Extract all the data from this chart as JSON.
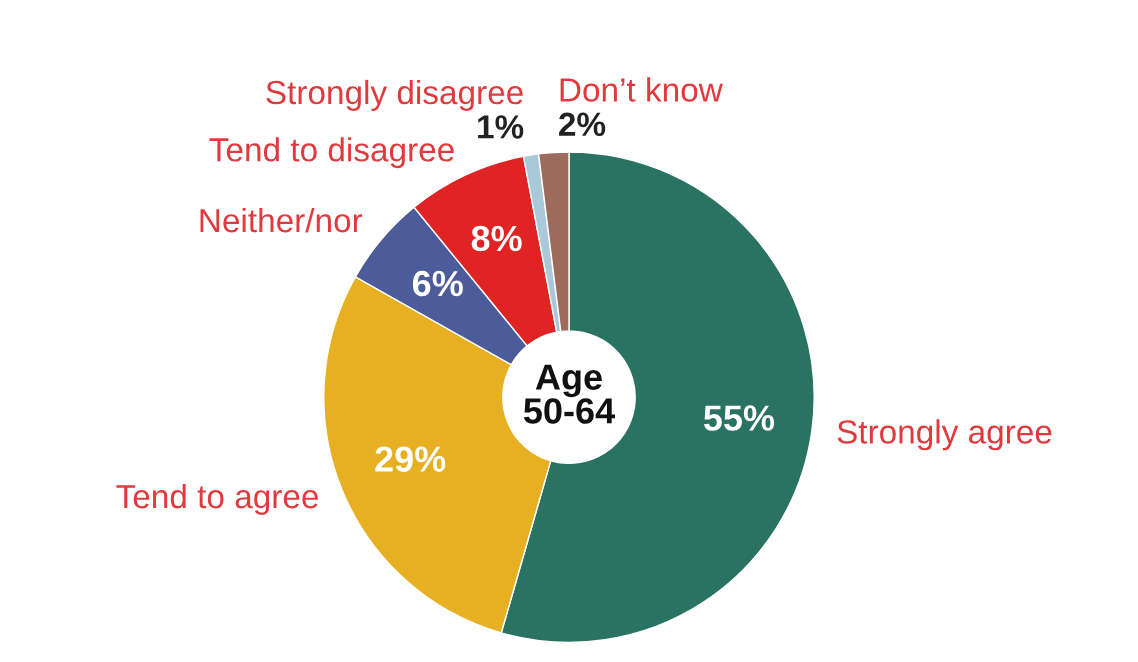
{
  "chart_data": {
    "type": "donut",
    "categories": [
      "Strongly agree",
      "Tend to agree",
      "Neither/nor",
      "Tend to disagree",
      "Strongly disagree",
      "Don’t know"
    ],
    "values": [
      55,
      29,
      6,
      8,
      1,
      2
    ],
    "colors": [
      "#2a7262",
      "#e6b022",
      "#4c5c9a",
      "#e02424",
      "#a9c9da",
      "#9c6b5c"
    ],
    "value_labels": [
      "55%",
      "29%",
      "6%",
      "8%",
      "1%",
      "2%"
    ],
    "annotations": [
      "Age\n50-64"
    ]
  }
}
